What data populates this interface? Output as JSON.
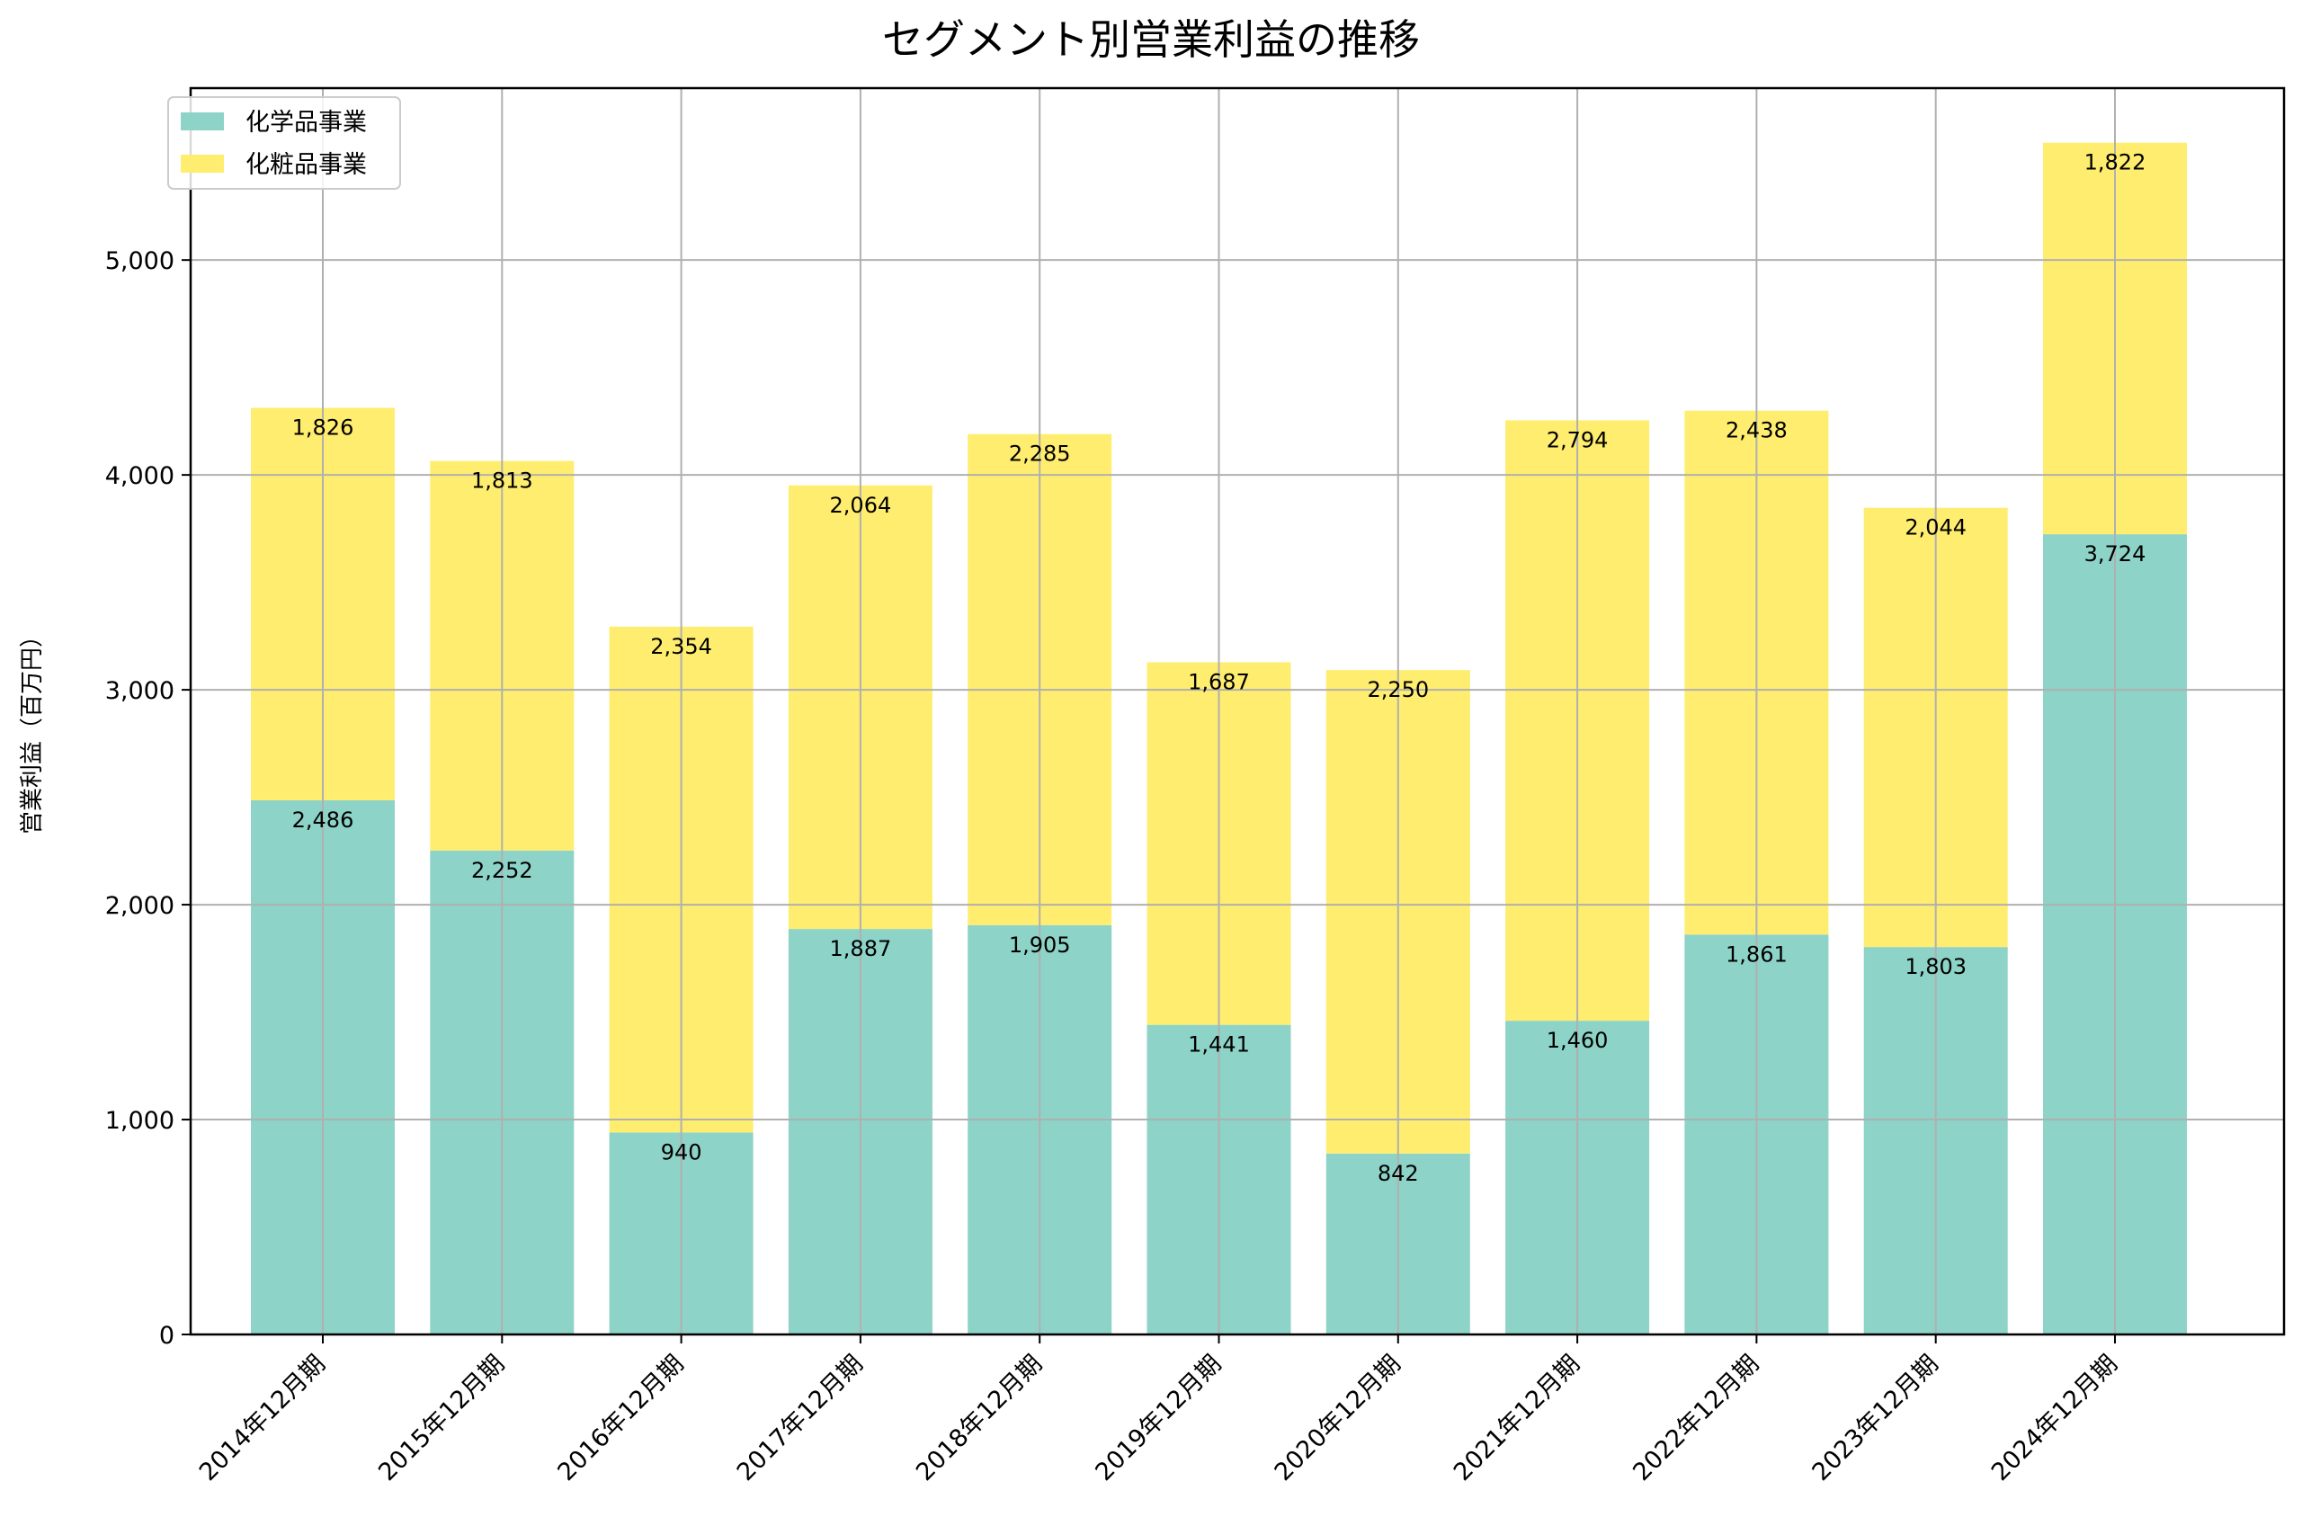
{
  "chart_data": {
    "type": "bar",
    "stacked": true,
    "title": "セグメント別営業利益の推移",
    "xlabel": "",
    "ylabel": "営業利益（百万円）",
    "ylim": [
      0,
      5800
    ],
    "yticks": [
      0,
      1000,
      2000,
      3000,
      4000,
      5000
    ],
    "ytick_labels": [
      "0",
      "1,000",
      "2,000",
      "3,000",
      "4,000",
      "5,000"
    ],
    "grid": true,
    "legend_position": "top-left",
    "categories": [
      "2014年12月期",
      "2015年12月期",
      "2016年12月期",
      "2017年12月期",
      "2018年12月期",
      "2019年12月期",
      "2020年12月期",
      "2021年12月期",
      "2022年12月期",
      "2023年12月期",
      "2024年12月期"
    ],
    "series": [
      {
        "name": "化学品事業",
        "color": "#8dd3c7",
        "values": [
          2486,
          2252,
          940,
          1887,
          1905,
          1441,
          842,
          1460,
          1861,
          1803,
          3724
        ],
        "labels": [
          "2,486",
          "2,252",
          "940",
          "1,887",
          "1,905",
          "1,441",
          "842",
          "1,460",
          "1,861",
          "1,803",
          "3,724"
        ]
      },
      {
        "name": "化粧品事業",
        "color": "#ffed6f",
        "values": [
          1826,
          1813,
          2354,
          2064,
          2285,
          1687,
          2250,
          2794,
          2438,
          2044,
          1822
        ],
        "labels": [
          "1,826",
          "1,813",
          "2,354",
          "2,064",
          "2,285",
          "1,687",
          "2,250",
          "2,794",
          "2,438",
          "2,044",
          "1,822"
        ]
      }
    ]
  }
}
